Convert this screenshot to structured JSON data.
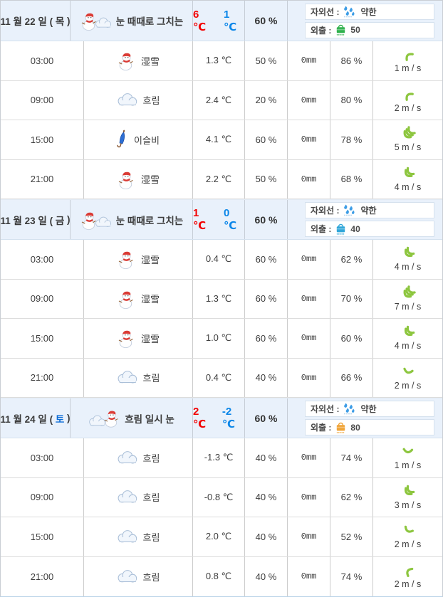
{
  "colors": {
    "high_temp_red": "#f20000",
    "low_temp_blue": "#0b86e8",
    "default_weekday": "#3a3a3a",
    "saturday_blue": "#0c6dd6",
    "wind_arrow_green": "#8dc63f",
    "header_bg": "#e9f1fb",
    "outing_day1": "#2fb14d",
    "outing_day2": "#2fa6d9",
    "outing_day3": "#f0a437"
  },
  "days": [
    {
      "date_prefix": "11 월 22 일 ( ",
      "weekday": "목",
      "date_suffix": " )",
      "weekday_color": "#3a3a3a",
      "icon": "snowman-cloud",
      "summary": "눈 때때로 그치는",
      "high": "6 ℃",
      "low": "1 ℃",
      "pop": "60 %",
      "uv_label": "자외선 :",
      "uv_level": "약한",
      "outing_label": "외출 :",
      "outing_value": "50",
      "outing_color": "#2fb14d",
      "hours": [
        {
          "time": "03:00",
          "icon": "snowman",
          "desc": "湿雪",
          "temp": "1.3 ℃",
          "pop": "50 %",
          "rain": "0mm",
          "humidity": "86 %",
          "wind": "1 m / s",
          "wind_chevrons": 1,
          "wind_rotation": -135
        },
        {
          "time": "09:00",
          "icon": "cloud",
          "desc": "흐림",
          "temp": "2.4 ℃",
          "pop": "20 %",
          "rain": "0mm",
          "humidity": "80 %",
          "wind": "2 m / s",
          "wind_chevrons": 1,
          "wind_rotation": -135
        },
        {
          "time": "15:00",
          "icon": "umbrella",
          "desc": "이슬비",
          "temp": "4.1 ℃",
          "pop": "60 %",
          "rain": "0mm",
          "humidity": "78 %",
          "wind": "5 m / s",
          "wind_chevrons": 3,
          "wind_rotation": 135
        },
        {
          "time": "21:00",
          "icon": "snowman",
          "desc": "湿雪",
          "temp": "2.2 ℃",
          "pop": "50 %",
          "rain": "0mm",
          "humidity": "68 %",
          "wind": "4 m / s",
          "wind_chevrons": 2,
          "wind_rotation": 135
        }
      ]
    },
    {
      "date_prefix": "11 월 23 일 ( ",
      "weekday": "금",
      "date_suffix": " )",
      "weekday_color": "#3a3a3a",
      "icon": "snowman-cloud",
      "summary": "눈 때때로 그치는",
      "high": "1 ℃",
      "low": "0 ℃",
      "pop": "60 %",
      "uv_label": "자외선 :",
      "uv_level": "약한",
      "outing_label": "외출 :",
      "outing_value": "40",
      "outing_color": "#2fa6d9",
      "hours": [
        {
          "time": "03:00",
          "icon": "snowman",
          "desc": "湿雪",
          "temp": "0.4 ℃",
          "pop": "60 %",
          "rain": "0mm",
          "humidity": "62 %",
          "wind": "4 m / s",
          "wind_chevrons": 2,
          "wind_rotation": 135
        },
        {
          "time": "09:00",
          "icon": "snowman",
          "desc": "湿雪",
          "temp": "1.3 ℃",
          "pop": "60 %",
          "rain": "0mm",
          "humidity": "70 %",
          "wind": "7 m / s",
          "wind_chevrons": 3,
          "wind_rotation": 135
        },
        {
          "time": "15:00",
          "icon": "snowman",
          "desc": "湿雪",
          "temp": "1.0 ℃",
          "pop": "60 %",
          "rain": "0mm",
          "humidity": "60 %",
          "wind": "4 m / s",
          "wind_chevrons": 2,
          "wind_rotation": 135
        },
        {
          "time": "21:00",
          "icon": "cloud",
          "desc": "흐림",
          "temp": "0.4 ℃",
          "pop": "40 %",
          "rain": "0mm",
          "humidity": "66 %",
          "wind": "2 m / s",
          "wind_chevrons": 1,
          "wind_rotation": 105
        }
      ]
    },
    {
      "date_prefix": "11 월 24 일 ( ",
      "weekday": "토",
      "date_suffix": " )",
      "weekday_color": "#0c6dd6",
      "icon": "cloud-snowman",
      "summary": "흐림 일시 눈",
      "high": "2 ℃",
      "low": "-2 ℃",
      "pop": "60 %",
      "uv_label": "자외선 :",
      "uv_level": "약한",
      "outing_label": "외출 :",
      "outing_value": "80",
      "outing_color": "#f0a437",
      "hours": [
        {
          "time": "03:00",
          "icon": "cloud",
          "desc": "흐림",
          "temp": "-1.3 ℃",
          "pop": "40 %",
          "rain": "0mm",
          "humidity": "74 %",
          "wind": "1 m / s",
          "wind_chevrons": 1,
          "wind_rotation": 95
        },
        {
          "time": "09:00",
          "icon": "cloud",
          "desc": "흐림",
          "temp": "-0.8 ℃",
          "pop": "40 %",
          "rain": "0mm",
          "humidity": "62 %",
          "wind": "3 m / s",
          "wind_chevrons": 2,
          "wind_rotation": 135
        },
        {
          "time": "15:00",
          "icon": "cloud",
          "desc": "흐림",
          "temp": "2.0 ℃",
          "pop": "40 %",
          "rain": "0mm",
          "humidity": "52 %",
          "wind": "2 m / s",
          "wind_chevrons": 1,
          "wind_rotation": 120
        },
        {
          "time": "21:00",
          "icon": "cloud",
          "desc": "흐림",
          "temp": "0.8 ℃",
          "pop": "40 %",
          "rain": "0mm",
          "humidity": "74 %",
          "wind": "2 m / s",
          "wind_chevrons": 1,
          "wind_rotation": -150
        }
      ]
    }
  ]
}
